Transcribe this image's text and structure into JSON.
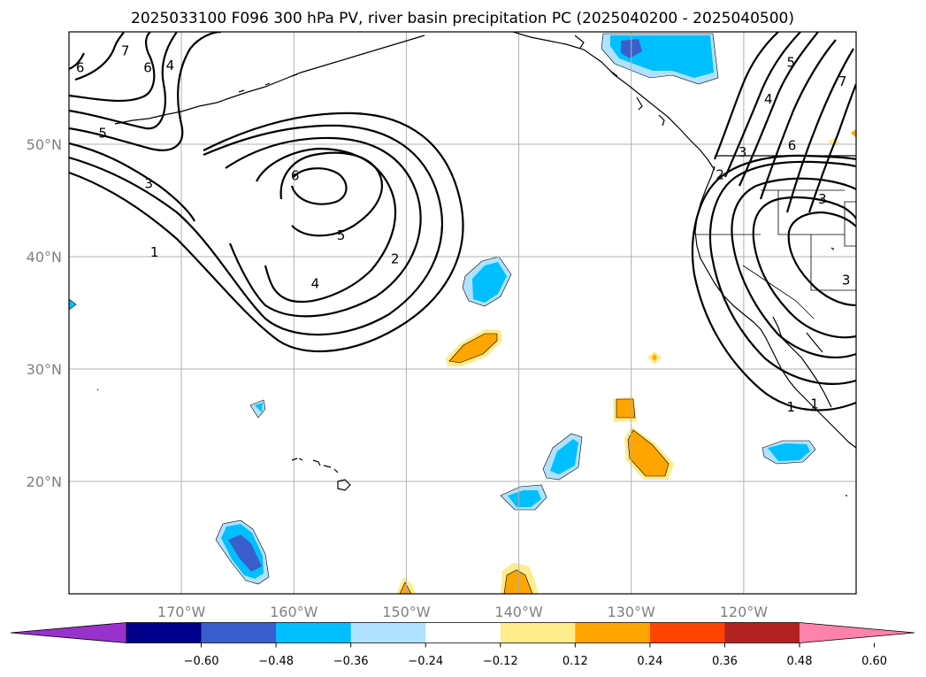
{
  "title": "2025033100 F096 300 hPa PV, river basin precipitation PC (2025040200 - 2025040500)",
  "map": {
    "lon_range": [
      -180,
      -110
    ],
    "lat_range": [
      10,
      60
    ],
    "lon_ticks": [
      {
        "lon": -170,
        "label": "170°W"
      },
      {
        "lon": -160,
        "label": "160°W"
      },
      {
        "lon": -150,
        "label": "150°W"
      },
      {
        "lon": -140,
        "label": "140°W"
      },
      {
        "lon": -130,
        "label": "130°W"
      },
      {
        "lon": -120,
        "label": "120°W"
      }
    ],
    "lat_ticks": [
      {
        "lat": 50,
        "label": "50°N"
      },
      {
        "lat": 40,
        "label": "40°N"
      },
      {
        "lat": 30,
        "label": "30°N"
      },
      {
        "lat": 20,
        "label": "20°N"
      }
    ],
    "gridlines": true
  },
  "colorbar": {
    "ticks": [
      "−0.60",
      "−0.48",
      "−0.36",
      "−0.24",
      "−0.12",
      "0.12",
      "0.24",
      "0.36",
      "0.48",
      "0.60"
    ],
    "colors": [
      "#9932cc",
      "#00008b",
      "#3a5fcd",
      "#00bfff",
      "#b0e2ff",
      "#ffffff",
      "#ffec8b",
      "#ffa500",
      "#ff4500",
      "#b22222",
      "#ff82ab"
    ],
    "extend": "both"
  },
  "contour_labels": [
    {
      "text": "6",
      "lon": -179.0,
      "lat": 56.8
    },
    {
      "text": "7",
      "lon": -175.0,
      "lat": 58.3
    },
    {
      "text": "6",
      "lon": -173.0,
      "lat": 56.8
    },
    {
      "text": "4",
      "lon": -171.0,
      "lat": 57.0
    },
    {
      "text": "5",
      "lon": -177.0,
      "lat": 51.0
    },
    {
      "text": "3",
      "lon": -172.9,
      "lat": 46.5
    },
    {
      "text": "1",
      "lon": -172.4,
      "lat": 40.4
    },
    {
      "text": "6",
      "lon": -159.9,
      "lat": 47.2
    },
    {
      "text": "5",
      "lon": -155.8,
      "lat": 41.9
    },
    {
      "text": "4",
      "lon": -158.1,
      "lat": 37.6
    },
    {
      "text": "2",
      "lon": -151.0,
      "lat": 39.8
    },
    {
      "text": "5",
      "lon": -115.8,
      "lat": 57.3
    },
    {
      "text": "7",
      "lon": -111.2,
      "lat": 55.6
    },
    {
      "text": "4",
      "lon": -117.8,
      "lat": 54.0
    },
    {
      "text": "6",
      "lon": -115.7,
      "lat": 49.9
    },
    {
      "text": "3",
      "lon": -120.1,
      "lat": 49.3
    },
    {
      "text": "2",
      "lon": -122.1,
      "lat": 47.3
    },
    {
      "text": "3",
      "lon": -113.0,
      "lat": 45.1
    },
    {
      "text": "3",
      "lon": -110.9,
      "lat": 37.9
    },
    {
      "text": "1",
      "lon": -115.8,
      "lat": 26.6
    },
    {
      "text": "1",
      "lon": -113.7,
      "lat": 26.9
    }
  ]
}
